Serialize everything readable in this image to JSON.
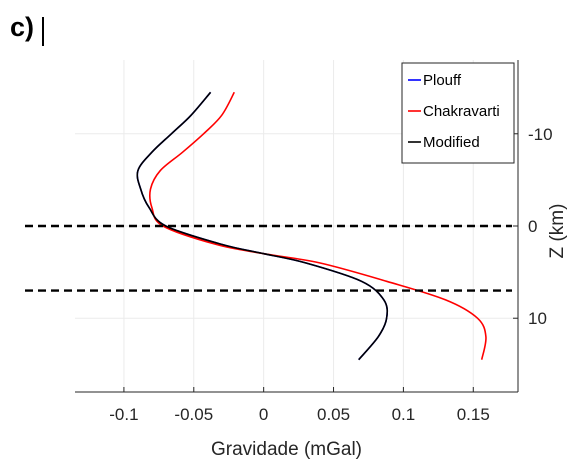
{
  "panel_label": "c)",
  "chart_data": {
    "type": "line",
    "xlabel": "Gravidade (mGal)",
    "ylabel": "Z (km)",
    "xlim": [
      -0.135,
      0.182
    ],
    "ylim": [
      -18,
      18
    ],
    "y_reversed": true,
    "y_axis_location": "right",
    "grid": true,
    "legend_placement": "top-right",
    "x_ticks": [
      -0.1,
      -0.05,
      0,
      0.05,
      0.1,
      0.15
    ],
    "x_tick_labels": [
      "-0.1",
      "-0.05",
      "0",
      "0.05",
      "0.1",
      "0.15"
    ],
    "y_ticks": [
      -10,
      0,
      10
    ],
    "y_tick_labels": [
      "-10",
      "0",
      "10"
    ],
    "reference_lines": [
      {
        "y": 0,
        "style": "dashed",
        "color": "#000000"
      },
      {
        "y": 7,
        "style": "dashed",
        "color": "#000000"
      }
    ],
    "series": [
      {
        "name": "Plouff",
        "color": "#0000ff",
        "z": [
          -14.5,
          -12,
          -10,
          -8,
          -6,
          -4,
          -2,
          0,
          2,
          3,
          4,
          6,
          8,
          10,
          12,
          14.5
        ],
        "values": [
          -0.038,
          -0.052,
          -0.066,
          -0.08,
          -0.09,
          -0.088,
          -0.082,
          -0.07,
          -0.03,
          0.0,
          0.03,
          0.07,
          0.086,
          0.088,
          0.082,
          0.068
        ]
      },
      {
        "name": "Chakravarti",
        "color": "#ff0000",
        "z": [
          -14.5,
          -12,
          -10,
          -8,
          -6,
          -4,
          -2,
          0,
          2,
          3,
          4,
          6,
          8,
          10,
          12,
          14.5
        ],
        "values": [
          -0.021,
          -0.03,
          -0.043,
          -0.058,
          -0.074,
          -0.081,
          -0.08,
          -0.072,
          -0.034,
          0.0,
          0.04,
          0.088,
          0.13,
          0.153,
          0.159,
          0.156
        ]
      },
      {
        "name": "Modified",
        "color": "#000000",
        "z": [
          -14.5,
          -12,
          -10,
          -8,
          -6,
          -4,
          -2,
          0,
          2,
          3,
          4,
          6,
          8,
          10,
          12,
          14.5
        ],
        "values": [
          -0.038,
          -0.052,
          -0.066,
          -0.08,
          -0.09,
          -0.088,
          -0.082,
          -0.07,
          -0.03,
          0.0,
          0.03,
          0.07,
          0.086,
          0.088,
          0.082,
          0.068
        ]
      }
    ]
  }
}
